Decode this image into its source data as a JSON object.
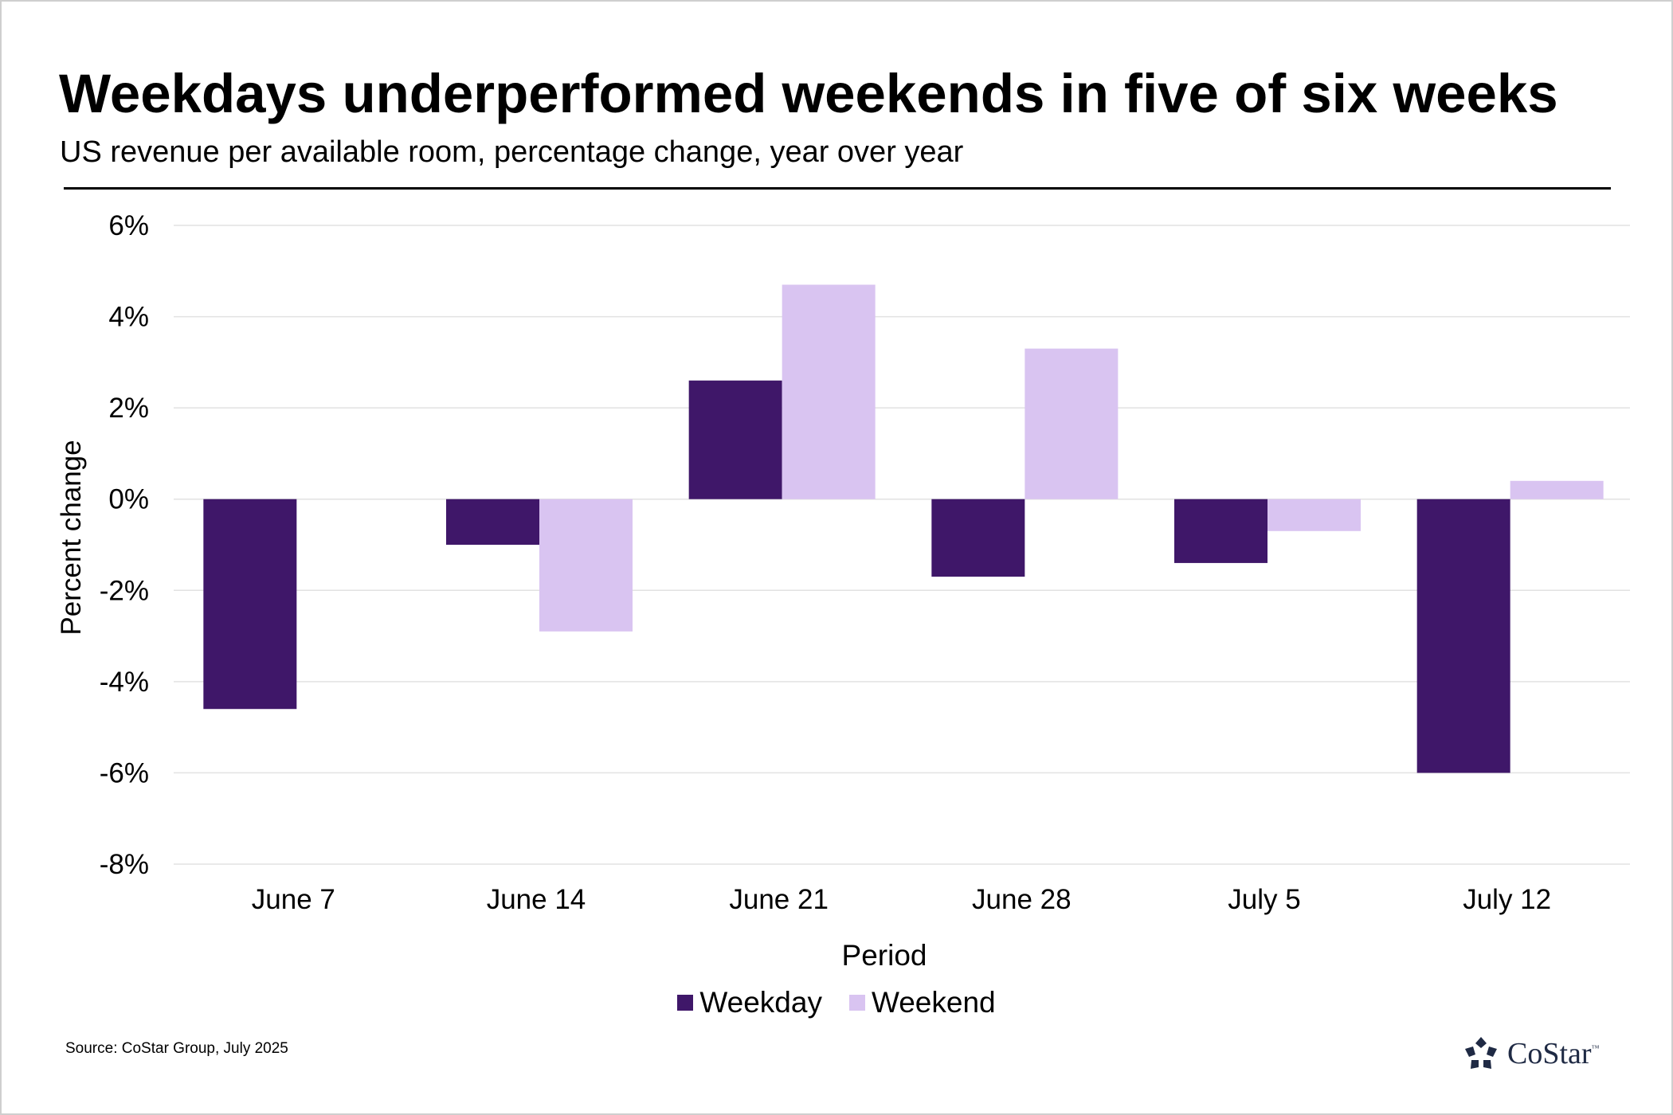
{
  "header": {
    "title": "Weekdays underperformed weekends in five of six weeks",
    "subtitle": "US revenue per available room, percentage change, year over year"
  },
  "footer": {
    "source": "Source: CoStar Group, July 2025",
    "logo_text": "CoStar",
    "logo_mark": "™"
  },
  "colors": {
    "weekday": "#3f1769",
    "weekend": "#d9c4f1",
    "grid": "#e2e2e2",
    "logo": "#1f2a44"
  },
  "chart_data": {
    "type": "bar",
    "title": "Weekdays underperformed weekends in five of six weeks",
    "subtitle": "US revenue per available room, percentage change, year over year",
    "xlabel": "Period",
    "ylabel": "Percent change",
    "categories": [
      "June 7",
      "June 14",
      "June 21",
      "June 28",
      "July 5",
      "July 12"
    ],
    "series": [
      {
        "name": "Weekday",
        "values": [
          -4.6,
          -1.0,
          2.6,
          -1.7,
          -1.4,
          -6.0
        ]
      },
      {
        "name": "Weekend",
        "values": [
          null,
          -2.9,
          4.7,
          3.3,
          -0.7,
          0.4
        ]
      }
    ],
    "ylim": [
      -8,
      6
    ],
    "yticks": [
      6,
      4,
      2,
      0,
      -2,
      -4,
      -6,
      -8
    ],
    "ytick_labels": [
      "6%",
      "4%",
      "2%",
      "0%",
      "-2%",
      "-4%",
      "-6%",
      "-8%"
    ],
    "grid": true,
    "legend": "bottom-center"
  }
}
